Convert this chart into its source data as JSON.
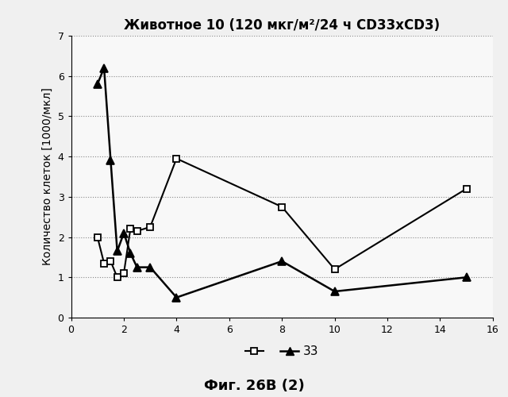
{
  "title": "Животное 10 (120 мкг/м²/24 ч CD33xCD3)",
  "ylabel": "Количество клеток [1000/мкл]",
  "xlabel_bottom": "Фиг. 26В (2)",
  "xlim": [
    0,
    16
  ],
  "ylim": [
    0,
    7
  ],
  "xticks": [
    0,
    2,
    4,
    6,
    8,
    10,
    12,
    14,
    16
  ],
  "yticks": [
    0,
    1,
    2,
    3,
    4,
    5,
    6,
    7
  ],
  "series1_x": [
    1,
    1.25,
    1.5,
    1.75,
    2,
    2.25,
    2.5,
    3,
    4,
    8,
    10,
    15
  ],
  "series1_y": [
    2.0,
    1.35,
    1.4,
    1.0,
    1.1,
    2.2,
    2.15,
    2.25,
    3.95,
    2.75,
    1.2,
    3.2
  ],
  "series2_x": [
    1,
    1.25,
    1.5,
    1.75,
    2,
    2.25,
    2.5,
    3,
    4,
    8,
    10,
    15
  ],
  "series2_y": [
    5.8,
    6.2,
    3.9,
    1.65,
    2.1,
    1.6,
    1.25,
    1.25,
    0.5,
    1.4,
    0.65,
    1.0
  ],
  "legend_label2": "33",
  "line_color": "black",
  "bg_color": "#f0f0f0",
  "plot_bg_color": "#f8f8f8",
  "grid_color": "#888888"
}
